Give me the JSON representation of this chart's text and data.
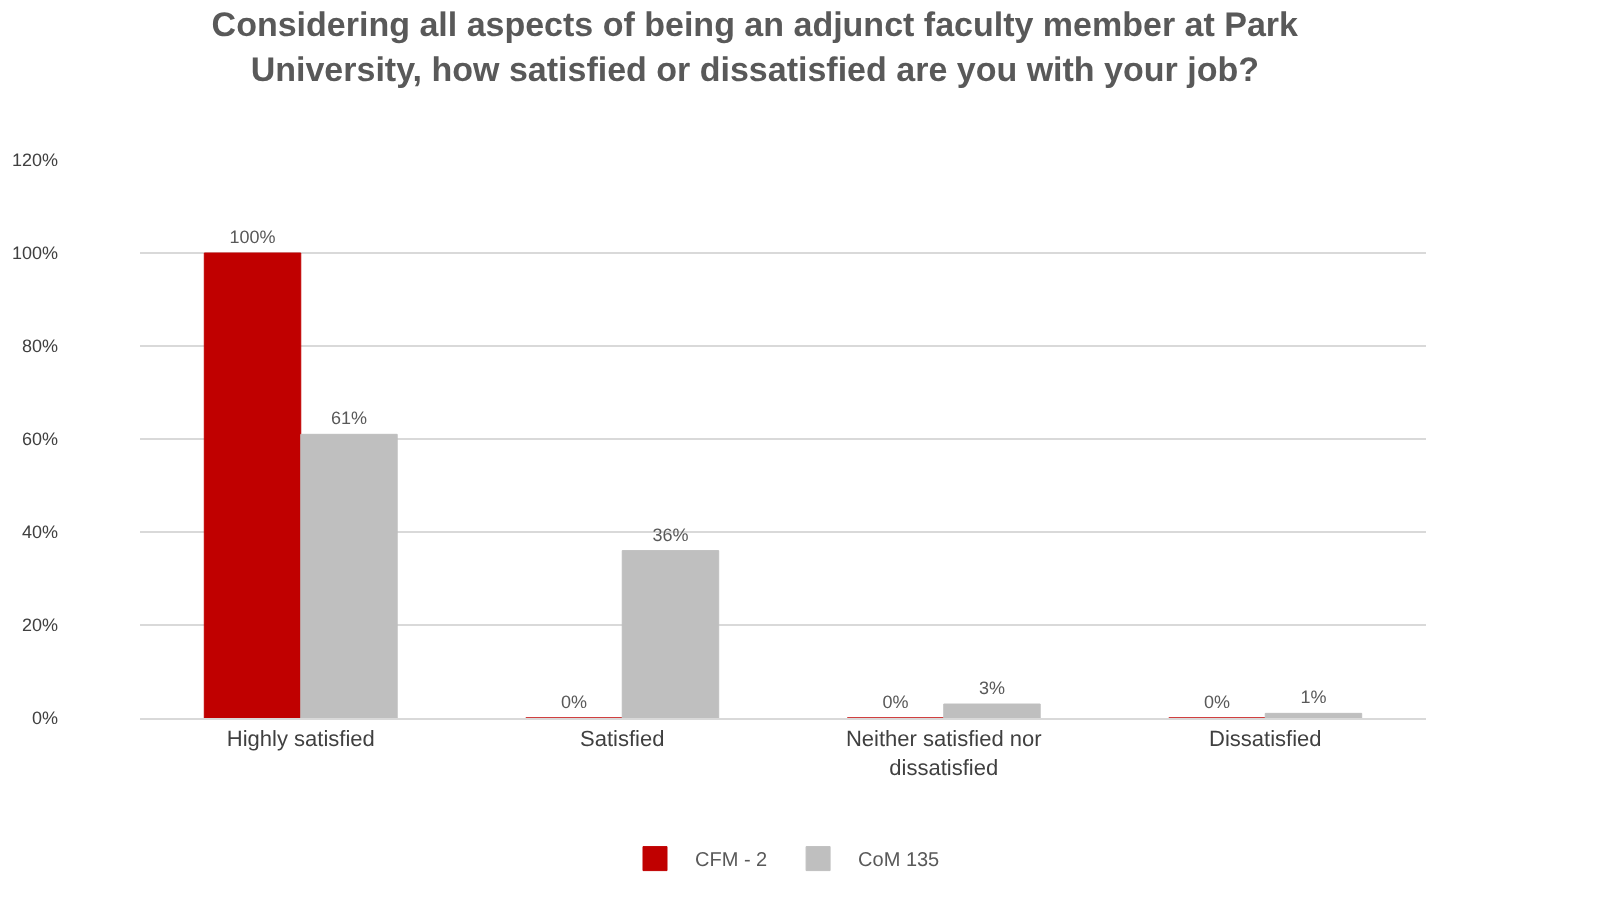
{
  "chart_data": {
    "type": "bar",
    "title": "Considering all aspects of being an adjunct faculty member at Park University, how satisfied or dissatisfied are you with your job?",
    "categories": [
      "Highly satisfied",
      "Satisfied",
      "Neither satisfied nor dissatisfied",
      "Dissatisfied"
    ],
    "series": [
      {
        "name": "CFM - 2",
        "color": "#c00000",
        "values": [
          100,
          0,
          0,
          0
        ],
        "value_labels": [
          "100%",
          "0%",
          "0%",
          "0%"
        ]
      },
      {
        "name": "CoM 135",
        "color": "#bfbfbf",
        "values": [
          61,
          36,
          3,
          1
        ],
        "value_labels": [
          "61%",
          "36%",
          "3%",
          "1%"
        ]
      }
    ],
    "ylim": [
      0,
      120
    ],
    "yticks": [
      {
        "value": 0,
        "label": "0%"
      },
      {
        "value": 20,
        "label": "20%"
      },
      {
        "value": 40,
        "label": "40%"
      },
      {
        "value": 60,
        "label": "60%"
      },
      {
        "value": 80,
        "label": "80%"
      },
      {
        "value": 100,
        "label": "100%"
      },
      {
        "value": 120,
        "label": "120%"
      }
    ],
    "grid": "y",
    "legend": "bottom"
  }
}
